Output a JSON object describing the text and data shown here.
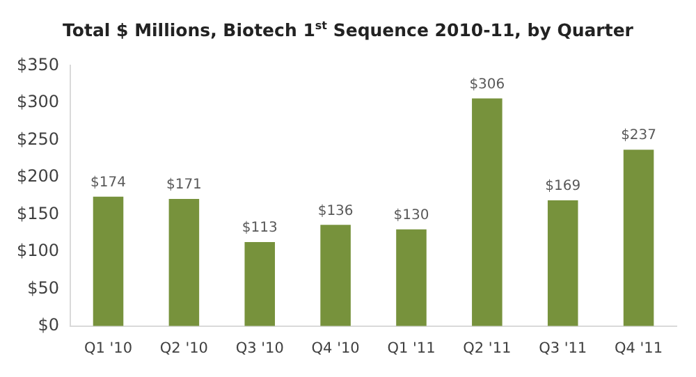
{
  "chart_data": {
    "type": "bar",
    "title": "Total $ Millions, Biotech 1$^{st}$ Sequence 2010-11, by Quarter",
    "categories": [
      "Q1 '10",
      "Q2 '10",
      "Q3 '10",
      "Q4 '10",
      "Q1 '11",
      "Q2 '11",
      "Q3 '11",
      "Q4 '11"
    ],
    "values": [
      174,
      171,
      113,
      136,
      130,
      306,
      169,
      237
    ],
    "value_labels": [
      "$174",
      "$171",
      "$113",
      "$136",
      "$130",
      "$306",
      "$169",
      "$237"
    ],
    "color": "#77923c",
    "ylim": [
      0,
      350
    ],
    "yticks": [
      {
        "value": 0,
        "label": "$0"
      },
      {
        "value": 50,
        "label": "$50"
      },
      {
        "value": 100,
        "label": "$100"
      },
      {
        "value": 150,
        "label": "$150"
      },
      {
        "value": 200,
        "label": "$200"
      },
      {
        "value": 250,
        "label": "$250"
      },
      {
        "value": 300,
        "label": "$300"
      },
      {
        "value": 350,
        "label": "$350"
      }
    ],
    "grid": false,
    "legend": false
  }
}
